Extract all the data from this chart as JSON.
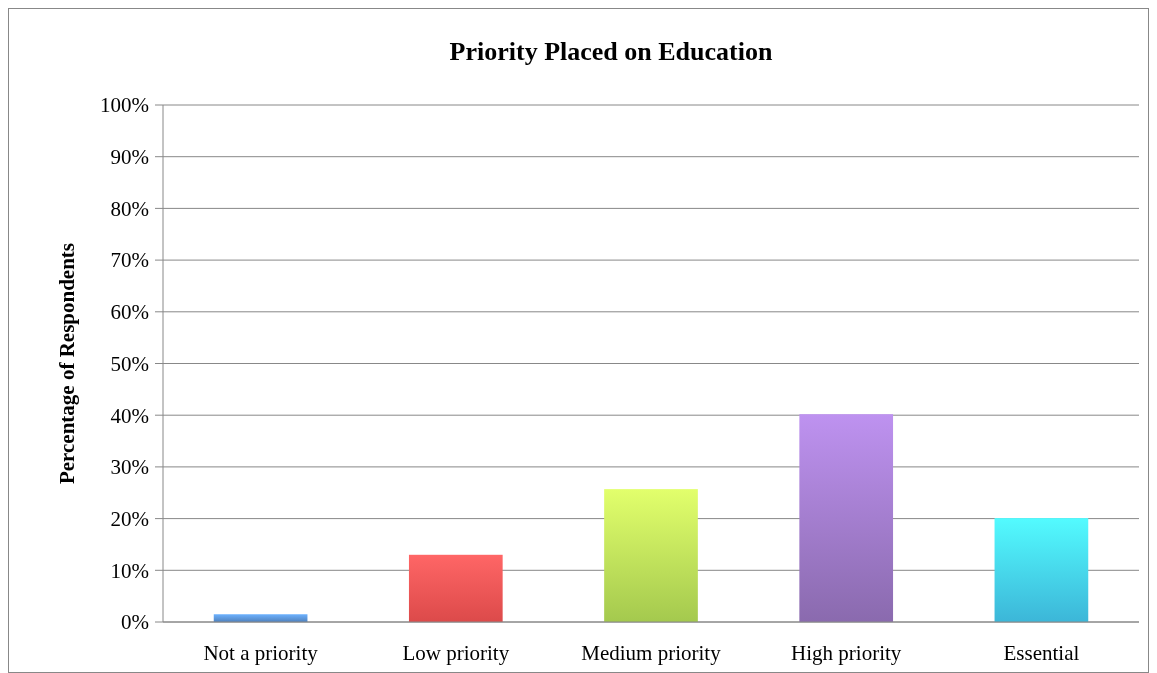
{
  "chart_data": {
    "type": "bar",
    "title": "Priority Placed on Education",
    "ylabel": "Percentage of Respondents",
    "categories": [
      "Not a priority",
      "Low priority",
      "Medium priority",
      "High priority",
      "Essential"
    ],
    "values": [
      1.5,
      13,
      25.7,
      40.2,
      20.1
    ],
    "colors": [
      "#4f81bd",
      "#dc4a4a",
      "#a4c94e",
      "#8a6aae",
      "#3cb6d8"
    ],
    "ylim": [
      0,
      100
    ],
    "yticks": [
      {
        "value": 0,
        "label": "0%"
      },
      {
        "value": 10,
        "label": "10%"
      },
      {
        "value": 20,
        "label": "20%"
      },
      {
        "value": 30,
        "label": "30%"
      },
      {
        "value": 40,
        "label": "40%"
      },
      {
        "value": 50,
        "label": "50%"
      },
      {
        "value": 60,
        "label": "60%"
      },
      {
        "value": 70,
        "label": "70%"
      },
      {
        "value": 80,
        "label": "80%"
      },
      {
        "value": 90,
        "label": "90%"
      },
      {
        "value": 100,
        "label": "100%"
      }
    ],
    "grid": "y"
  }
}
